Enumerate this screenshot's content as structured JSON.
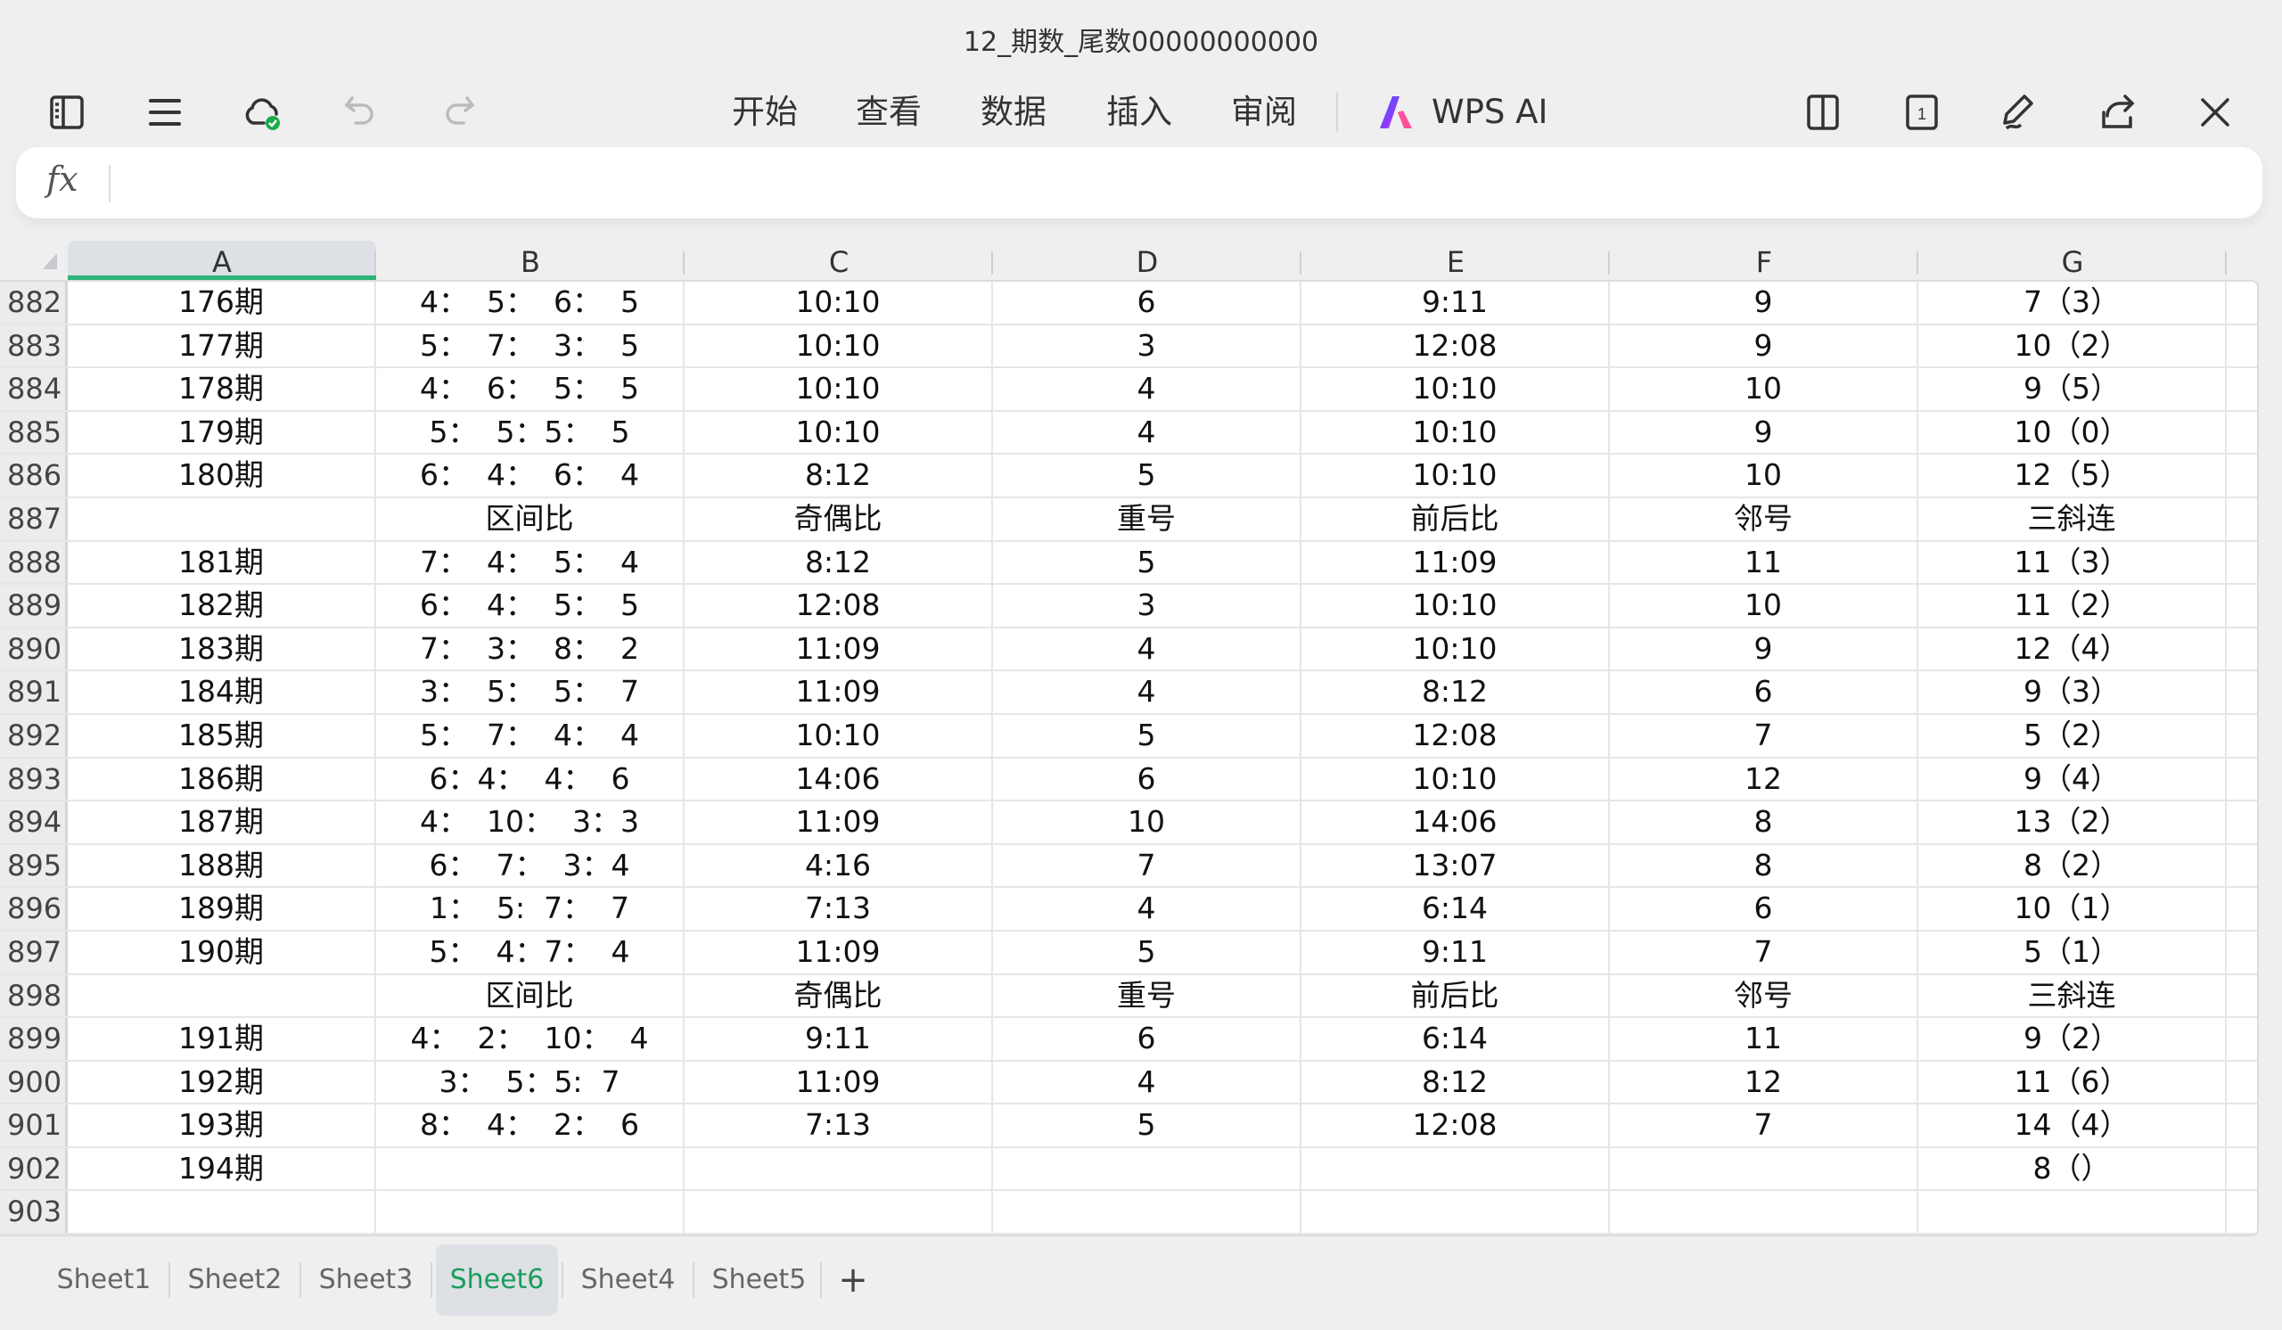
{
  "window": {
    "title": "12_期数_尾数00000000000"
  },
  "toolbar": {
    "left_icons": [
      "sidebar-icon",
      "menu-icon",
      "cloud-synced-icon",
      "undo-icon",
      "redo-icon"
    ],
    "menu": [
      "开始",
      "查看",
      "数据",
      "插入",
      "审阅"
    ],
    "ai_label": "WPS AI",
    "right_icons": [
      "split-view-icon",
      "page-count-icon",
      "pen-icon",
      "share-icon",
      "close-icon"
    ],
    "page_badge": "1"
  },
  "formula_bar": {
    "fx_label": "fx",
    "value": ""
  },
  "colors": {
    "accent": "#1a9e5c",
    "selected_header_underline": "#2eb378",
    "cloud_ok": "#1aab4a"
  },
  "columns": [
    "A",
    "B",
    "C",
    "D",
    "E",
    "F",
    "G"
  ],
  "selected_column": "A",
  "rows": [
    {
      "n": "882",
      "cells": [
        "176期",
        "4：  5：  6：  5",
        "10:10",
        "6",
        "9:11",
        "9",
        "7（3）"
      ]
    },
    {
      "n": "883",
      "cells": [
        "177期",
        "5：  7：  3：  5",
        "10:10",
        "3",
        "12:08",
        "9",
        "10（2）"
      ]
    },
    {
      "n": "884",
      "cells": [
        "178期",
        "4：  6：  5：  5",
        "10:10",
        "4",
        "10:10",
        "10",
        "9（5）"
      ]
    },
    {
      "n": "885",
      "cells": [
        "179期",
        "5：  5：5：  5",
        "10:10",
        "4",
        "10:10",
        "9",
        "10（0）"
      ]
    },
    {
      "n": "886",
      "cells": [
        "180期",
        "6：  4：  6：  4",
        "8:12",
        "5",
        "10:10",
        "10",
        "12（5）"
      ]
    },
    {
      "n": "887",
      "cells": [
        "",
        "区间比",
        "奇偶比",
        "重号",
        "前后比",
        "邻号",
        "三斜连"
      ]
    },
    {
      "n": "888",
      "cells": [
        "181期",
        "7：  4：  5：  4",
        "8:12",
        "5",
        "11:09",
        "11",
        "11（3）"
      ]
    },
    {
      "n": "889",
      "cells": [
        "182期",
        "6：  4：  5：  5",
        "12:08",
        "3",
        "10:10",
        "10",
        "11（2）"
      ]
    },
    {
      "n": "890",
      "cells": [
        "183期",
        "7：  3：  8：  2",
        "11:09",
        "4",
        "10:10",
        "9",
        "12（4）"
      ]
    },
    {
      "n": "891",
      "cells": [
        "184期",
        "3：  5：  5：  7",
        "11:09",
        "4",
        "8:12",
        "6",
        "9（3）"
      ]
    },
    {
      "n": "892",
      "cells": [
        "185期",
        "5：  7：  4：  4",
        "10:10",
        "5",
        "12:08",
        "7",
        "5（2）"
      ]
    },
    {
      "n": "893",
      "cells": [
        "186期",
        "6：4：  4：  6",
        "14:06",
        "6",
        "10:10",
        "12",
        "9（4）"
      ]
    },
    {
      "n": "894",
      "cells": [
        "187期",
        "4：  10：  3：3",
        "11:09",
        "10",
        "14:06",
        "8",
        "13（2）"
      ]
    },
    {
      "n": "895",
      "cells": [
        "188期",
        "6：  7：  3：4",
        "4:16",
        "7",
        "13:07",
        "8",
        "8（2）"
      ]
    },
    {
      "n": "896",
      "cells": [
        "189期",
        "1：  5:  7：  7",
        "7:13",
        "4",
        "6:14",
        "6",
        "10（1）"
      ]
    },
    {
      "n": "897",
      "cells": [
        "190期",
        "5：  4：7：  4",
        "11:09",
        "5",
        "9:11",
        "7",
        "5（1）"
      ]
    },
    {
      "n": "898",
      "cells": [
        "",
        "区间比",
        "奇偶比",
        "重号",
        "前后比",
        "邻号",
        "三斜连"
      ]
    },
    {
      "n": "899",
      "cells": [
        "191期",
        "4：  2：  10：  4",
        "9:11",
        "6",
        "6:14",
        "11",
        "9（2）"
      ]
    },
    {
      "n": "900",
      "cells": [
        "192期",
        "3：  5：5:  7",
        "11:09",
        "4",
        "8:12",
        "12",
        "11（6）"
      ]
    },
    {
      "n": "901",
      "cells": [
        "193期",
        "8：  4：  2：  6",
        "7:13",
        "5",
        "12:08",
        "7",
        "14（4）"
      ]
    },
    {
      "n": "902",
      "cells": [
        "194期",
        "",
        "",
        "",
        "",
        "",
        "8（）"
      ]
    },
    {
      "n": "903",
      "cells": [
        "",
        "",
        "",
        "",
        "",
        "",
        ""
      ]
    }
  ],
  "sheet_tabs": [
    "Sheet1",
    "Sheet2",
    "Sheet3",
    "Sheet6",
    "Sheet4",
    "Sheet5"
  ],
  "active_sheet": "Sheet6",
  "add_sheet_label": "+"
}
